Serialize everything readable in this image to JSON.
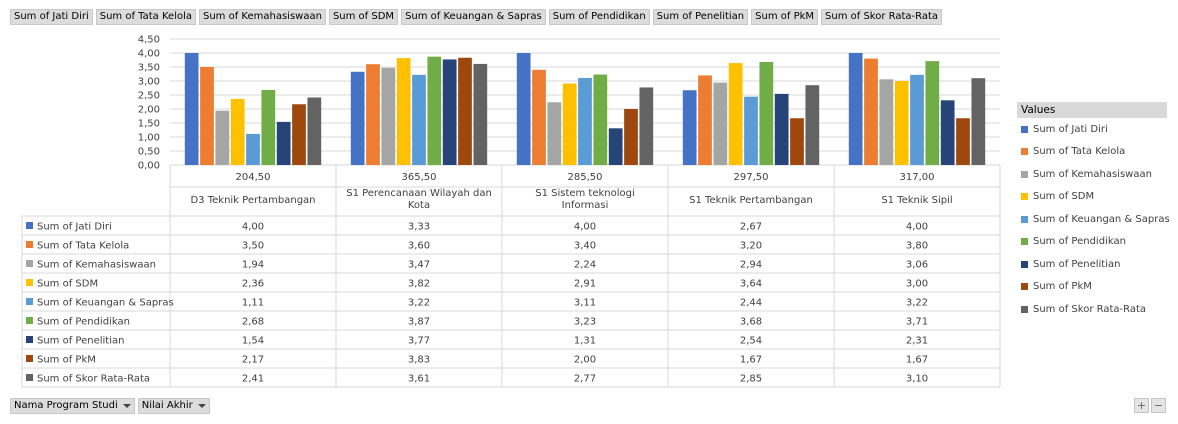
{
  "value_fields": [
    "Sum of Jati Diri",
    "Sum of Tata Kelola",
    "Sum of Kemahasiswaan",
    "Sum of SDM",
    "Sum of Keuangan & Sapras",
    "Sum of Pendidikan",
    "Sum of Penelitian",
    "Sum of PkM",
    "Sum of Skor Rata-Rata"
  ],
  "axis_fields": [
    {
      "label": "Nama Program Studi"
    },
    {
      "label": "Nilai Akhir"
    }
  ],
  "zoom": {
    "plus": "+",
    "minus": "−"
  },
  "legend_title": "Values",
  "chart_data": {
    "type": "bar",
    "grid": true,
    "legend_position": "right",
    "ylim": [
      0,
      4.5
    ],
    "yticks": [
      "0,00",
      "0,50",
      "1,00",
      "1,50",
      "2,00",
      "2,50",
      "3,00",
      "3,50",
      "4,00",
      "4,50"
    ],
    "nilai_akhir": [
      "204,50",
      "365,50",
      "285,50",
      "297,50",
      "317,00"
    ],
    "categories": [
      "D3 Teknik Pertambangan",
      "S1 Perencanaan Wilayah dan Kota",
      "S1 Sistem teknologi Informasi",
      "S1 Teknik Pertambangan",
      "S1 Teknik Sipil"
    ],
    "series": [
      {
        "name": "Sum of Jati Diri",
        "color": "#4472C4",
        "values": [
          4.0,
          3.33,
          4.0,
          2.67,
          4.0
        ],
        "labels": [
          "4,00",
          "3,33",
          "4,00",
          "2,67",
          "4,00"
        ]
      },
      {
        "name": "Sum of Tata Kelola",
        "color": "#ED7D31",
        "values": [
          3.5,
          3.6,
          3.4,
          3.2,
          3.8
        ],
        "labels": [
          "3,50",
          "3,60",
          "3,40",
          "3,20",
          "3,80"
        ]
      },
      {
        "name": "Sum of Kemahasiswaan",
        "color": "#A5A5A5",
        "values": [
          1.94,
          3.47,
          2.24,
          2.94,
          3.06
        ],
        "labels": [
          "1,94",
          "3,47",
          "2,24",
          "2,94",
          "3,06"
        ]
      },
      {
        "name": "Sum of SDM",
        "color": "#FFC000",
        "values": [
          2.36,
          3.82,
          2.91,
          3.64,
          3.0
        ],
        "labels": [
          "2,36",
          "3,82",
          "2,91",
          "3,64",
          "3,00"
        ]
      },
      {
        "name": "Sum of Keuangan & Sapras",
        "color": "#5B9BD5",
        "values": [
          1.11,
          3.22,
          3.11,
          2.44,
          3.22
        ],
        "labels": [
          "1,11",
          "3,22",
          "3,11",
          "2,44",
          "3,22"
        ]
      },
      {
        "name": "Sum of Pendidikan",
        "color": "#70AD47",
        "values": [
          2.68,
          3.87,
          3.23,
          3.68,
          3.71
        ],
        "labels": [
          "2,68",
          "3,87",
          "3,23",
          "3,68",
          "3,71"
        ]
      },
      {
        "name": "Sum of Penelitian",
        "color": "#264478",
        "values": [
          1.54,
          3.77,
          1.31,
          2.54,
          2.31
        ],
        "labels": [
          "1,54",
          "3,77",
          "1,31",
          "2,54",
          "2,31"
        ]
      },
      {
        "name": "Sum of PkM",
        "color": "#9E480E",
        "values": [
          2.17,
          3.83,
          2.0,
          1.67,
          1.67
        ],
        "labels": [
          "2,17",
          "3,83",
          "2,00",
          "1,67",
          "1,67"
        ]
      },
      {
        "name": "Sum of Skor Rata-Rata",
        "color": "#636363",
        "values": [
          2.41,
          3.61,
          2.77,
          2.85,
          3.1
        ],
        "labels": [
          "2,41",
          "3,61",
          "2,77",
          "2,85",
          "3,10"
        ]
      }
    ]
  }
}
